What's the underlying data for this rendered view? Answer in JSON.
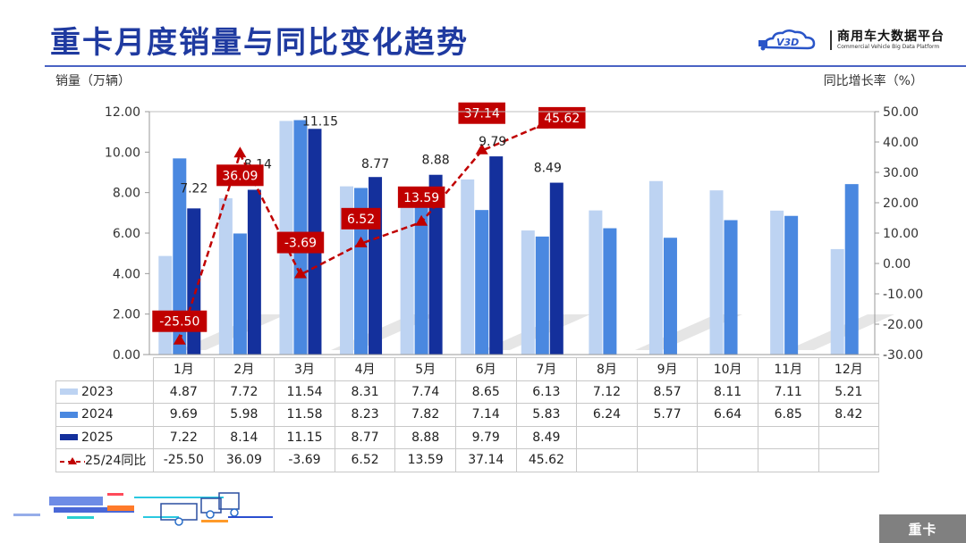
{
  "header": {
    "title": "重卡月度销量与同比变化趋势",
    "brand_cn": "商用车大数据平台",
    "brand_en": "Commercial Vehicle Big Data Platform",
    "brand_logo_text": "V3D"
  },
  "axes": {
    "left_title": "销量（万辆）",
    "right_title": "同比增长率（%）",
    "left_ticks": [
      "12.00",
      "10.00",
      "8.00",
      "6.00",
      "4.00",
      "2.00",
      "0.00"
    ],
    "right_ticks": [
      "50.00",
      "40.00",
      "30.00",
      "20.00",
      "10.00",
      "0.00",
      "-10.00",
      "-20.00",
      "-30.00"
    ]
  },
  "table": {
    "months": [
      "1月",
      "2月",
      "3月",
      "4月",
      "5月",
      "6月",
      "7月",
      "8月",
      "9月",
      "10月",
      "11月",
      "12月"
    ],
    "rows": [
      {
        "label": "2023",
        "values": [
          "4.87",
          "7.72",
          "11.54",
          "8.31",
          "7.74",
          "8.65",
          "6.13",
          "7.12",
          "8.57",
          "8.11",
          "7.11",
          "5.21"
        ]
      },
      {
        "label": "2024",
        "values": [
          "9.69",
          "5.98",
          "11.58",
          "8.23",
          "7.82",
          "7.14",
          "5.83",
          "6.24",
          "5.77",
          "6.64",
          "6.85",
          "8.42"
        ]
      },
      {
        "label": "2025",
        "values": [
          "7.22",
          "8.14",
          "11.15",
          "8.77",
          "8.88",
          "9.79",
          "8.49",
          "",
          "",
          "",
          "",
          ""
        ]
      },
      {
        "label": "25/24同比",
        "values": [
          "-25.50",
          "36.09",
          "-3.69",
          "6.52",
          "13.59",
          "37.14",
          "45.62",
          "",
          "",
          "",
          "",
          ""
        ]
      }
    ]
  },
  "footer": {
    "tag": "重卡"
  },
  "colors": {
    "s2023": "#bdd3f2",
    "s2024": "#4a88e0",
    "s2025": "#14309c",
    "yoy": "#c00000",
    "title": "#1f3aa0"
  },
  "chart_data": {
    "type": "bar",
    "title": "重卡月度销量与同比变化趋势",
    "xlabel": "",
    "ylabel": "销量（万辆）",
    "y2label": "同比增长率（%）",
    "ylim": [
      0,
      12
    ],
    "y2lim": [
      -30,
      50
    ],
    "grid": false,
    "legend_position": "table",
    "categories": [
      "1月",
      "2月",
      "3月",
      "4月",
      "5月",
      "6月",
      "7月",
      "8月",
      "9月",
      "10月",
      "11月",
      "12月"
    ],
    "series": [
      {
        "name": "2023",
        "type": "bar",
        "axis": "left",
        "values": [
          4.87,
          7.72,
          11.54,
          8.31,
          7.74,
          8.65,
          6.13,
          7.12,
          8.57,
          8.11,
          7.11,
          5.21
        ]
      },
      {
        "name": "2024",
        "type": "bar",
        "axis": "left",
        "values": [
          9.69,
          5.98,
          11.58,
          8.23,
          7.82,
          7.14,
          5.83,
          6.24,
          5.77,
          6.64,
          6.85,
          8.42
        ]
      },
      {
        "name": "2025",
        "type": "bar",
        "axis": "left",
        "values": [
          7.22,
          8.14,
          11.15,
          8.77,
          8.88,
          9.79,
          8.49,
          null,
          null,
          null,
          null,
          null
        ]
      },
      {
        "name": "25/24同比",
        "type": "line",
        "axis": "right",
        "values": [
          -25.5,
          36.09,
          -3.69,
          6.52,
          13.59,
          37.14,
          45.62,
          null,
          null,
          null,
          null,
          null
        ]
      }
    ],
    "annotations": [
      "7.22",
      "8.14",
      "11.15",
      "8.77",
      "8.88",
      "9.79",
      "8.49",
      "-25.50",
      "36.09",
      "-3.69",
      "6.52",
      "13.59",
      "37.14",
      "45.62"
    ]
  }
}
